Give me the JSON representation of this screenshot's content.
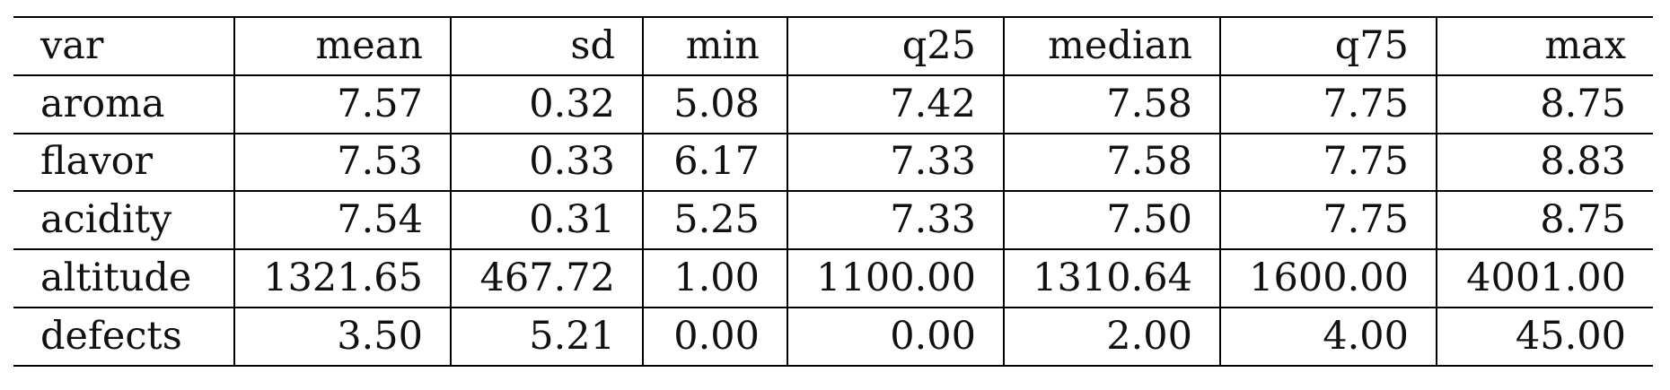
{
  "table": {
    "columns": [
      "var",
      "mean",
      "sd",
      "min",
      "q25",
      "median",
      "q75",
      "max"
    ],
    "rows": [
      [
        "aroma",
        "7.57",
        "0.32",
        "5.08",
        "7.42",
        "7.58",
        "7.75",
        "8.75"
      ],
      [
        "flavor",
        "7.53",
        "0.33",
        "6.17",
        "7.33",
        "7.58",
        "7.75",
        "8.83"
      ],
      [
        "acidity",
        "7.54",
        "0.31",
        "5.25",
        "7.33",
        "7.50",
        "7.75",
        "8.75"
      ],
      [
        "altitude",
        "1321.65",
        "467.72",
        "1.00",
        "1100.00",
        "1310.64",
        "1600.00",
        "4001.00"
      ],
      [
        "defects",
        "3.50",
        "5.21",
        "0.00",
        "0.00",
        "2.00",
        "4.00",
        "45.00"
      ]
    ]
  }
}
